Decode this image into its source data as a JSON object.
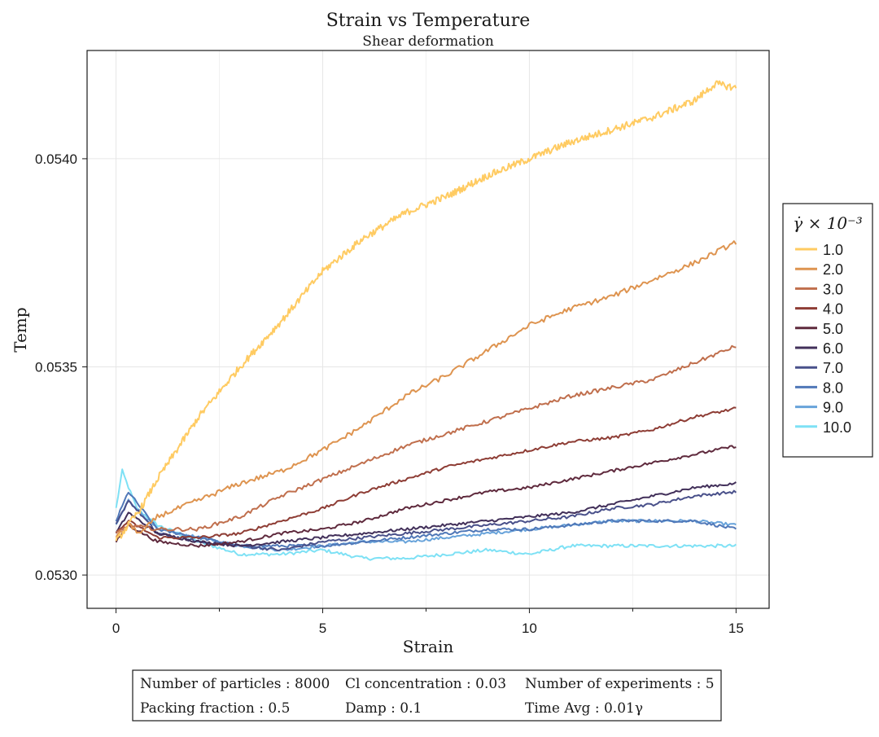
{
  "chart_data": {
    "type": "line",
    "title": "Strain vs Temperature",
    "subtitle": "Shear deformation",
    "xlabel": "Strain",
    "ylabel": "Temp",
    "xlim": [
      -0.7,
      15.8
    ],
    "ylim": [
      0.05292,
      0.05426
    ],
    "x_ticks": [
      0,
      5,
      10,
      15
    ],
    "x_tick_labels": [
      "0",
      "5",
      "10",
      "15"
    ],
    "y_ticks": [
      0.053,
      0.0535,
      0.054
    ],
    "y_tick_labels": [
      "0.0530",
      "0.0535",
      "0.0540"
    ],
    "grid": true,
    "legend_title": "γ̇ × 10⁻³",
    "legend_placement": "right",
    "series": [
      {
        "name": "1.0",
        "color": "#ffcb62",
        "noise": 8.5e-06,
        "x": [
          0,
          0.3,
          0.6,
          1,
          2,
          3,
          4,
          5,
          6,
          7,
          8,
          9,
          10,
          11,
          12,
          13,
          14,
          14.5,
          15
        ],
        "y": [
          0.05308,
          0.05312,
          0.05316,
          0.05323,
          0.05338,
          0.0535,
          0.05361,
          0.05373,
          0.05381,
          0.05387,
          0.05391,
          0.05396,
          0.054,
          0.05404,
          0.05407,
          0.0541,
          0.05414,
          0.05418,
          0.05417
        ]
      },
      {
        "name": "2.0",
        "color": "#de9450",
        "noise": 6e-06,
        "x": [
          0,
          0.3,
          0.6,
          1,
          2,
          3,
          4,
          5,
          6,
          7,
          8,
          9,
          10,
          11,
          12,
          13,
          14,
          15
        ],
        "y": [
          0.05309,
          0.05312,
          0.0531,
          0.05314,
          0.05318,
          0.05322,
          0.05325,
          0.0533,
          0.05336,
          0.05343,
          0.05348,
          0.05354,
          0.0536,
          0.05364,
          0.05367,
          0.05371,
          0.05375,
          0.0538
        ]
      },
      {
        "name": "3.0",
        "color": "#c06f4d",
        "noise": 4.5e-06,
        "x": [
          0,
          0.3,
          1,
          2,
          3,
          4,
          5,
          6,
          7,
          8,
          9,
          10,
          11,
          12,
          13,
          14,
          15
        ],
        "y": [
          0.0531,
          0.05312,
          0.05311,
          0.05311,
          0.05314,
          0.05319,
          0.05323,
          0.05327,
          0.05331,
          0.05334,
          0.05337,
          0.0534,
          0.05343,
          0.05345,
          0.05347,
          0.05351,
          0.05355
        ]
      },
      {
        "name": "4.0",
        "color": "#8e3d35",
        "noise": 3.5e-06,
        "x": [
          0,
          0.3,
          1,
          2,
          3,
          4,
          5,
          6,
          7,
          8,
          9,
          10,
          11,
          12,
          13,
          14,
          15
        ],
        "y": [
          0.0531,
          0.05313,
          0.05309,
          0.05309,
          0.0531,
          0.05313,
          0.05316,
          0.0532,
          0.05323,
          0.05326,
          0.05328,
          0.0533,
          0.05332,
          0.05333,
          0.05335,
          0.05338,
          0.0534
        ]
      },
      {
        "name": "5.0",
        "color": "#5f2a3d",
        "noise": 3.5e-06,
        "x": [
          0,
          0.3,
          1,
          2,
          3,
          4,
          5,
          6,
          7,
          8,
          9,
          10,
          11,
          12,
          13,
          14,
          15
        ],
        "y": [
          0.05308,
          0.05312,
          0.05308,
          0.05307,
          0.05308,
          0.0531,
          0.05311,
          0.05313,
          0.05316,
          0.05318,
          0.0532,
          0.05321,
          0.05323,
          0.05325,
          0.05327,
          0.05329,
          0.05331
        ]
      },
      {
        "name": "6.0",
        "color": "#42305a",
        "noise": 3.5e-06,
        "x": [
          0,
          0.3,
          1,
          2,
          3,
          4,
          5,
          6,
          7,
          8,
          9,
          10,
          11,
          12,
          13,
          14,
          15
        ],
        "y": [
          0.0531,
          0.05315,
          0.0531,
          0.05308,
          0.05307,
          0.05308,
          0.05309,
          0.0531,
          0.05311,
          0.05312,
          0.05313,
          0.05314,
          0.05315,
          0.05317,
          0.05319,
          0.05321,
          0.05322
        ]
      },
      {
        "name": "7.0",
        "color": "#49508a",
        "noise": 3.5e-06,
        "x": [
          0,
          0.3,
          1,
          2,
          3,
          4,
          5,
          6,
          7,
          8,
          9,
          10,
          11,
          12,
          13,
          14,
          15
        ],
        "y": [
          0.05312,
          0.05318,
          0.0531,
          0.05308,
          0.05307,
          0.05306,
          0.05308,
          0.05309,
          0.0531,
          0.05311,
          0.05312,
          0.05313,
          0.05314,
          0.05316,
          0.05317,
          0.05319,
          0.0532
        ]
      },
      {
        "name": "8.0",
        "color": "#5078b8",
        "noise": 3.5e-06,
        "x": [
          0,
          0.3,
          1,
          2,
          3,
          4,
          5,
          6,
          7,
          8,
          9,
          10,
          11,
          12,
          13,
          14,
          15
        ],
        "y": [
          0.05313,
          0.0532,
          0.05311,
          0.05309,
          0.05307,
          0.05307,
          0.05307,
          0.05308,
          0.05309,
          0.0531,
          0.05311,
          0.05311,
          0.05312,
          0.05313,
          0.05313,
          0.05313,
          0.05311
        ]
      },
      {
        "name": "9.0",
        "color": "#68a3da",
        "noise": 3.5e-06,
        "x": [
          0,
          0.3,
          1,
          2,
          3,
          4,
          5,
          6,
          7,
          8,
          9,
          10,
          11,
          12,
          13,
          14,
          15
        ],
        "y": [
          0.05312,
          0.05318,
          0.05311,
          0.05309,
          0.05307,
          0.05306,
          0.05307,
          0.05308,
          0.05308,
          0.05309,
          0.0531,
          0.05311,
          0.05312,
          0.05313,
          0.05313,
          0.05313,
          0.05312
        ]
      },
      {
        "name": "10.0",
        "color": "#7ee1f5",
        "noise": 4e-06,
        "x": [
          0,
          0.15,
          0.5,
          1,
          2,
          3,
          4,
          5,
          6,
          7,
          8,
          9,
          10,
          11,
          12,
          13,
          14,
          15
        ],
        "y": [
          0.05316,
          0.05325,
          0.05316,
          0.05312,
          0.05308,
          0.05305,
          0.05305,
          0.05306,
          0.05304,
          0.05304,
          0.05305,
          0.05306,
          0.05305,
          0.05307,
          0.05307,
          0.05307,
          0.05307,
          0.05307
        ]
      }
    ]
  },
  "info_box": {
    "rows": [
      [
        "Number of particles : 8000",
        "Cl concentration : 0.03",
        "Number of experiments : 5"
      ],
      [
        "Packing fraction : 0.5",
        "Damp : 0.1",
        "Time Avg : 0.01γ"
      ]
    ]
  }
}
